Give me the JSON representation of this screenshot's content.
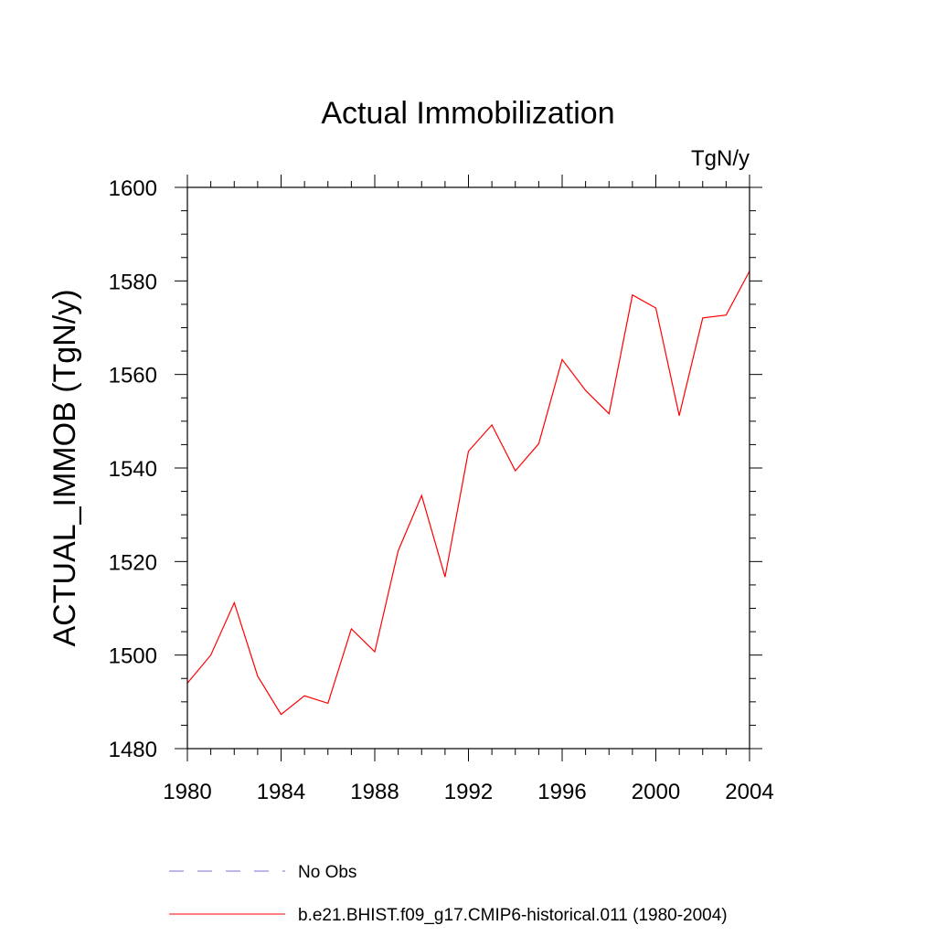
{
  "chart_data": {
    "type": "line",
    "title": "Actual Immobilization",
    "units": "TgN/y",
    "ylabel": "ACTUAL_IMMOB  (TgN/y)",
    "xlabel": "",
    "xlim": [
      1980,
      2004
    ],
    "ylim": [
      1480,
      1600
    ],
    "xticks": [
      1980,
      1984,
      1988,
      1992,
      1996,
      2000,
      2004
    ],
    "yticks": [
      1480,
      1500,
      1520,
      1540,
      1560,
      1580,
      1600
    ],
    "grid": false,
    "series": [
      {
        "name": "b.e21.BHIST.f09_g17.CMIP6-historical.011 (1980-2004)",
        "color": "#ff0000",
        "style": "solid",
        "x": [
          1980,
          1981,
          1982,
          1983,
          1984,
          1985,
          1986,
          1987,
          1988,
          1989,
          1990,
          1991,
          1992,
          1993,
          1994,
          1995,
          1996,
          1997,
          1998,
          1999,
          2000,
          2001,
          2002,
          2003,
          2004
        ],
        "values": [
          1494,
          1500,
          1511.2,
          1495.5,
          1487.3,
          1491.3,
          1489.7,
          1505.6,
          1500.7,
          1522.3,
          1534.1,
          1516.7,
          1543.6,
          1549.2,
          1539.4,
          1545.2,
          1563.2,
          1556.6,
          1551.6,
          1577,
          1574.2,
          1551.2,
          1572.1,
          1572.7,
          1582.1
        ]
      }
    ],
    "legend": {
      "placement": "bottom",
      "entries": [
        {
          "label": "No Obs",
          "color": "#7b6fd6",
          "style": "dashed"
        },
        {
          "label": "b.e21.BHIST.f09_g17.CMIP6-historical.011 (1980-2004)",
          "color": "#ff0000",
          "style": "solid"
        }
      ]
    }
  }
}
